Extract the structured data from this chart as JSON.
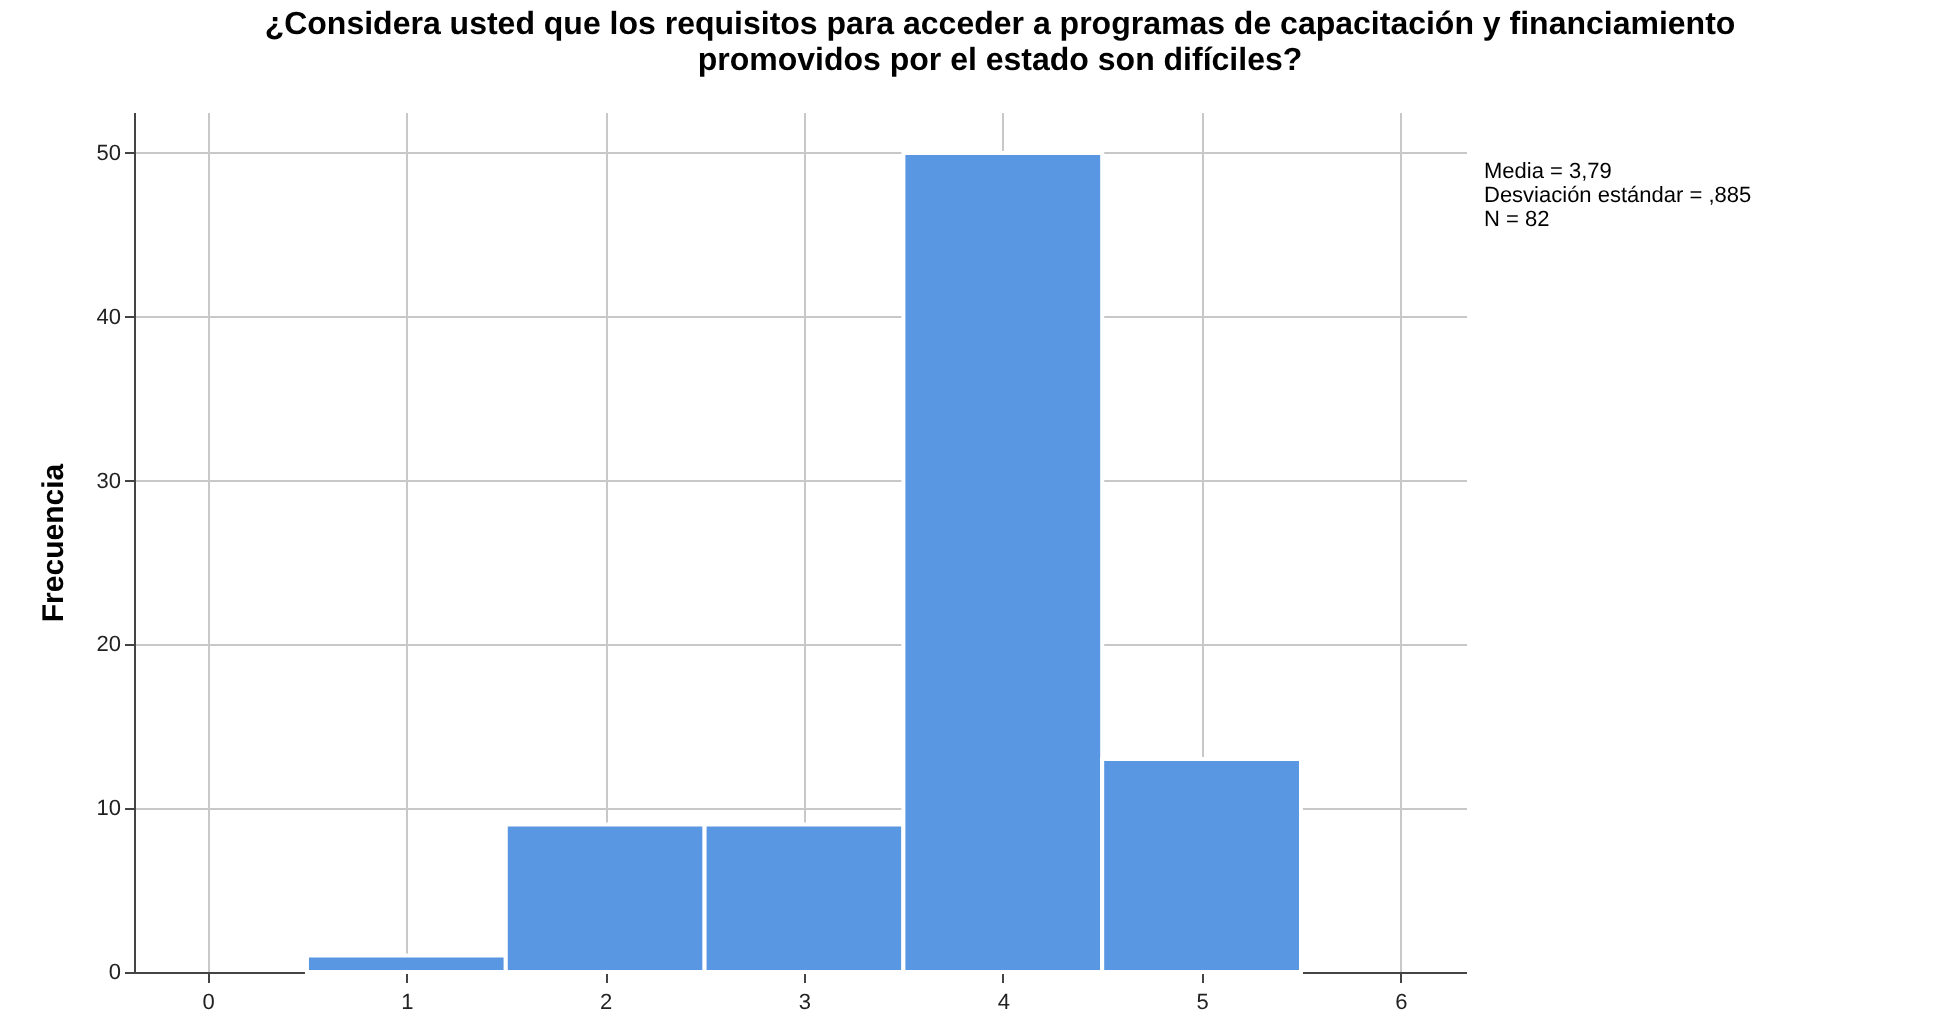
{
  "chart_data": {
    "type": "histogram",
    "title": "¿Considera usted que los requisitos para acceder a programas de capacitación y financiamiento promovidos por el estado son difíciles?",
    "ylabel": "Frecuencia",
    "bins": [
      0.5,
      1.5,
      2.5,
      3.5,
      4.5,
      5.5
    ],
    "values": [
      1,
      9,
      9,
      50,
      13
    ],
    "color": "#5a97e3",
    "xlim": [
      -0.37,
      6.33
    ],
    "xticks": [
      0,
      1,
      2,
      3,
      4,
      5,
      6
    ],
    "ylim": [
      0,
      52.5
    ],
    "yticks": [
      0,
      10,
      20,
      30,
      40,
      50
    ],
    "grid": true,
    "annotations": [
      "Media = 3,79",
      "Desviación estándar = ,885",
      "N = 82"
    ]
  }
}
